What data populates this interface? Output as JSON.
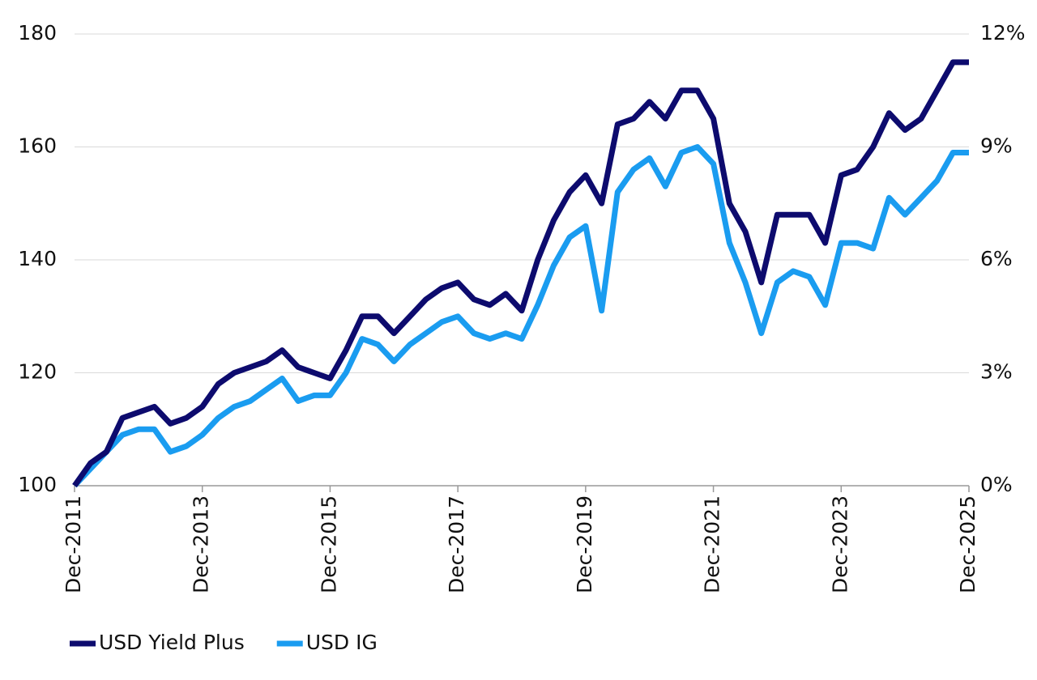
{
  "chart_data": {
    "type": "line",
    "x": [
      "Dec-2011",
      "Mar-2012",
      "Jun-2012",
      "Sep-2012",
      "Dec-2012",
      "Mar-2013",
      "Jun-2013",
      "Sep-2013",
      "Dec-2013",
      "Mar-2014",
      "Jun-2014",
      "Sep-2014",
      "Dec-2014",
      "Mar-2015",
      "Jun-2015",
      "Sep-2015",
      "Dec-2015",
      "Mar-2016",
      "Jun-2016",
      "Sep-2016",
      "Dec-2016",
      "Mar-2017",
      "Jun-2017",
      "Sep-2017",
      "Dec-2017",
      "Mar-2018",
      "Jun-2018",
      "Sep-2018",
      "Dec-2018",
      "Mar-2019",
      "Jun-2019",
      "Sep-2019",
      "Dec-2019",
      "Mar-2020",
      "Jun-2020",
      "Sep-2020",
      "Dec-2020",
      "Mar-2021",
      "Jun-2021",
      "Sep-2021",
      "Dec-2021",
      "Mar-2022",
      "Jun-2022",
      "Sep-2022",
      "Dec-2022",
      "Mar-2023",
      "Jun-2023",
      "Sep-2023",
      "Dec-2023",
      "Mar-2024",
      "Jun-2024",
      "Sep-2024",
      "Dec-2024",
      "Mar-2025",
      "Jun-2025",
      "Sep-2025",
      "Dec-2025"
    ],
    "series": [
      {
        "name": "USD Yield Plus",
        "color": "#0d0b6e",
        "values": [
          100,
          104,
          106,
          112,
          113,
          114,
          111,
          112,
          114,
          118,
          120,
          121,
          122,
          124,
          121,
          120,
          119,
          124,
          130,
          130,
          127,
          130,
          133,
          135,
          136,
          133,
          132,
          134,
          131,
          140,
          147,
          152,
          155,
          150,
          164,
          165,
          168,
          165,
          170,
          170,
          165,
          150,
          145,
          136,
          148,
          148,
          148,
          143,
          155,
          156,
          160,
          166,
          163,
          165,
          170,
          175,
          175
        ]
      },
      {
        "name": "USD IG",
        "color": "#1a9cf0",
        "values": [
          100,
          103,
          106,
          109,
          110,
          110,
          106,
          107,
          109,
          112,
          114,
          115,
          117,
          119,
          115,
          116,
          116,
          120,
          126,
          125,
          122,
          125,
          127,
          129,
          130,
          127,
          126,
          127,
          126,
          132,
          139,
          144,
          146,
          131,
          152,
          156,
          158,
          153,
          159,
          160,
          157,
          143,
          136,
          127,
          136,
          138,
          137,
          132,
          143,
          143,
          142,
          151,
          148,
          151,
          154,
          159,
          159
        ]
      }
    ],
    "xticks": [
      "Dec-2011",
      "Dec-2013",
      "Dec-2015",
      "Dec-2017",
      "Dec-2019",
      "Dec-2021",
      "Dec-2023",
      "Dec-2025"
    ],
    "ylim": [
      100,
      180
    ],
    "yticks": [
      100,
      120,
      140,
      160,
      180
    ],
    "y2lim": [
      0,
      12
    ],
    "y2ticks": [
      {
        "value": 0,
        "label": "0%"
      },
      {
        "value": 3,
        "label": "3%"
      },
      {
        "value": 6,
        "label": "6%"
      },
      {
        "value": 9,
        "label": "9%"
      },
      {
        "value": 12,
        "label": "12%"
      }
    ],
    "grid": true
  }
}
